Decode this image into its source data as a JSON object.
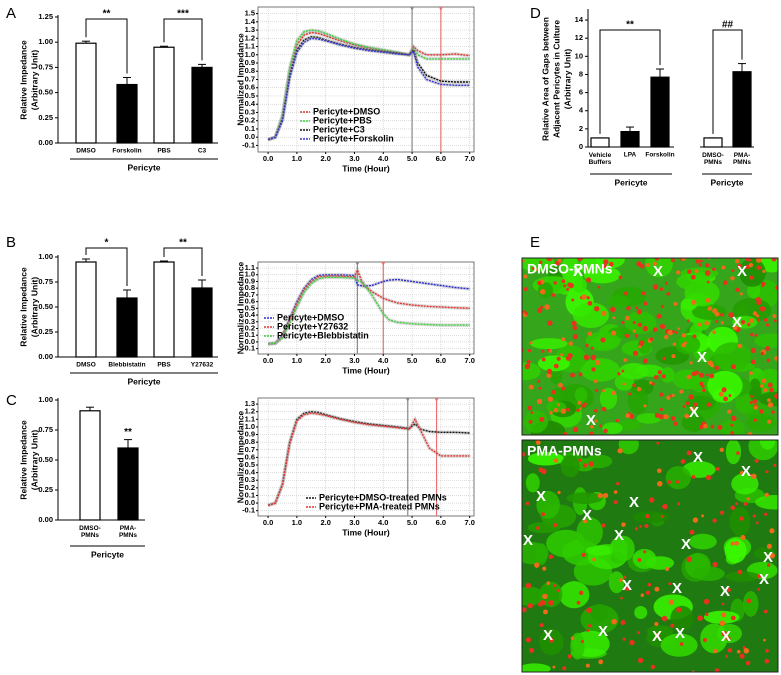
{
  "panel_labels": [
    "A",
    "B",
    "C",
    "D",
    "E"
  ],
  "chart_data": [
    {
      "type": "bar",
      "ylabel": [
        "Relative Impedance",
        "(Arbitrary Unit)"
      ],
      "xlabel": "Pericyte",
      "categories": [
        "DMSO",
        "Forskolin",
        "PBS",
        "C3"
      ],
      "values": [
        0.99,
        0.58,
        0.95,
        0.75
      ],
      "errors": [
        0.02,
        0.07,
        0.01,
        0.03
      ],
      "colors": [
        "#ffffff",
        "#000000",
        "#ffffff",
        "#000000"
      ],
      "ylim": [
        0,
        1.25
      ],
      "yticks": [
        {
          "value": 0,
          "label": "0.00"
        },
        0.25,
        {
          "value": 0.5,
          "label": "0.50"
        },
        0.75,
        {
          "value": 1,
          "label": "1.00"
        },
        1.25
      ],
      "annotations": [
        "**",
        "***"
      ]
    },
    {
      "type": "line",
      "ylabel": "Normalized Impedance",
      "xlabel": "Time (Hour)",
      "grid": true,
      "legend": "lower right",
      "x": [
        0,
        0.25,
        0.5,
        0.75,
        1,
        1.25,
        1.5,
        1.75,
        2,
        2.5,
        3,
        3.5,
        4,
        4.5,
        4.9,
        5.05,
        5.2,
        5.5,
        6,
        6.5,
        7
      ],
      "series": [
        {
          "name": "Pericyte+DMSO",
          "color": "#e8322c",
          "values": [
            -0.03,
            0.0,
            0.25,
            0.8,
            1.12,
            1.24,
            1.27,
            1.26,
            1.23,
            1.17,
            1.12,
            1.08,
            1.05,
            1.02,
            1.0,
            1.1,
            1.05,
            1.0,
            1.0,
            1.01,
            0.99
          ]
        },
        {
          "name": "Pericyte+PBS",
          "color": "#3ad13a",
          "values": [
            -0.03,
            0.0,
            0.27,
            0.84,
            1.17,
            1.28,
            1.3,
            1.29,
            1.26,
            1.19,
            1.13,
            1.09,
            1.06,
            1.03,
            1.0,
            1.08,
            1.0,
            0.95,
            0.95,
            0.95,
            0.95
          ]
        },
        {
          "name": "Pericyte+C3",
          "color": "#111111",
          "values": [
            -0.03,
            0.0,
            0.22,
            0.75,
            1.06,
            1.18,
            1.22,
            1.21,
            1.18,
            1.13,
            1.09,
            1.06,
            1.04,
            1.02,
            1.0,
            1.06,
            0.9,
            0.75,
            0.68,
            0.67,
            0.67
          ]
        },
        {
          "name": "Pericyte+Forskolin",
          "color": "#3535d6",
          "values": [
            -0.03,
            0.0,
            0.2,
            0.72,
            1.03,
            1.15,
            1.2,
            1.19,
            1.17,
            1.12,
            1.08,
            1.05,
            1.03,
            1.01,
            1.0,
            1.04,
            0.85,
            0.7,
            0.64,
            0.63,
            0.63
          ]
        }
      ],
      "vlines": [
        {
          "x": 5.0,
          "color": "#888888"
        },
        {
          "x": 6.0,
          "color": "#e87070"
        }
      ],
      "xlim": [
        -0.35,
        7.15
      ],
      "ylim": [
        -0.18,
        1.58
      ],
      "xticks": [
        {
          "value": 0,
          "label": "0.0"
        },
        {
          "value": 1,
          "label": "1.0"
        },
        {
          "value": 2,
          "label": "2.0"
        },
        {
          "value": 3,
          "label": "3.0"
        },
        {
          "value": 4,
          "label": "4.0"
        },
        {
          "value": 5,
          "label": "5.0"
        },
        {
          "value": 6,
          "label": "6.0"
        },
        {
          "value": 7,
          "label": "7.0"
        }
      ],
      "yticks": [
        -0.1,
        {
          "value": 0,
          "label": "0.0"
        },
        0.1,
        0.2,
        0.3,
        0.4,
        0.5,
        0.6,
        0.7,
        0.8,
        0.9,
        {
          "value": 1,
          "label": "1.0"
        },
        1.1,
        1.2,
        1.3,
        1.4,
        1.5
      ]
    },
    {
      "type": "bar",
      "ylabel": [
        "Relative Impedance",
        "(Arbitrary Unit)"
      ],
      "xlabel": "Pericyte",
      "categories": [
        "DMSO",
        "Blebbistatin",
        "PBS",
        "Y27632"
      ],
      "values": [
        0.95,
        0.59,
        0.95,
        0.69
      ],
      "errors": [
        0.03,
        0.08,
        0.01,
        0.08
      ],
      "colors": [
        "#ffffff",
        "#000000",
        "#ffffff",
        "#000000"
      ],
      "ylim": [
        0,
        1
      ],
      "yticks": [
        {
          "value": 0,
          "label": "0.00"
        },
        0.25,
        {
          "value": 0.5,
          "label": "0.50"
        },
        0.75,
        {
          "value": 1,
          "label": "1.00"
        }
      ],
      "annotations": [
        "*",
        "**"
      ]
    },
    {
      "type": "line",
      "ylabel": "Normalized Impedance",
      "xlabel": "Time (Hour)",
      "grid": true,
      "legend": "lower left",
      "x": [
        0,
        0.25,
        0.5,
        0.75,
        1,
        1.25,
        1.5,
        1.75,
        2,
        2.5,
        3,
        3.1,
        3.3,
        3.6,
        4,
        4.2,
        4.5,
        5,
        5.5,
        6,
        6.5,
        7
      ],
      "series": [
        {
          "name": "Pericyte+DMSO",
          "color": "#2a2ad6",
          "values": [
            -0.03,
            -0.02,
            0.1,
            0.35,
            0.6,
            0.8,
            0.93,
            0.99,
            1.0,
            1.0,
            0.99,
            0.85,
            0.83,
            0.84,
            0.9,
            0.92,
            0.93,
            0.9,
            0.87,
            0.84,
            0.81,
            0.79
          ]
        },
        {
          "name": "Pericyte+Y27632",
          "color": "#e8322c",
          "values": [
            -0.03,
            -0.02,
            0.08,
            0.32,
            0.57,
            0.78,
            0.9,
            0.97,
            0.98,
            0.98,
            0.97,
            1.07,
            0.85,
            0.75,
            0.65,
            0.62,
            0.58,
            0.55,
            0.53,
            0.52,
            0.51,
            0.5
          ]
        },
        {
          "name": "Pericyte+Blebbistatin",
          "color": "#3ad13a",
          "values": [
            -0.03,
            -0.02,
            0.06,
            0.28,
            0.52,
            0.74,
            0.87,
            0.94,
            0.96,
            0.96,
            0.95,
            0.92,
            0.88,
            0.7,
            0.42,
            0.33,
            0.29,
            0.27,
            0.26,
            0.25,
            0.25,
            0.25
          ]
        }
      ],
      "vlines": [
        {
          "x": 3.1,
          "color": "#888888"
        },
        {
          "x": 4.0,
          "color": "#e87070"
        }
      ],
      "xlim": [
        -0.35,
        7.15
      ],
      "ylim": [
        -0.18,
        1.19
      ],
      "xticks": [
        {
          "value": 0,
          "label": "0.0"
        },
        {
          "value": 1,
          "label": "1.0"
        },
        {
          "value": 2,
          "label": "2.0"
        },
        {
          "value": 3,
          "label": "3.0"
        },
        {
          "value": 4,
          "label": "4.0"
        },
        {
          "value": 5,
          "label": "5.0"
        },
        {
          "value": 6,
          "label": "6.0"
        },
        {
          "value": 7,
          "label": "7.0"
        }
      ],
      "yticks": [
        -0.1,
        {
          "value": 0,
          "label": "0.0"
        },
        0.1,
        0.2,
        0.3,
        0.4,
        0.5,
        0.6,
        0.7,
        0.8,
        0.9,
        {
          "value": 1,
          "label": "1.0"
        },
        1.1
      ]
    },
    {
      "type": "bar",
      "ylabel": [
        "Relative Impedance",
        "(Arbitrary Unit)"
      ],
      "xlabel": "Pericyte",
      "categories": [
        "DMSO-\nPMNs",
        "PMA-\nPMNs"
      ],
      "values": [
        0.91,
        0.6
      ],
      "errors": [
        0.03,
        0.07
      ],
      "colors": [
        "#ffffff",
        "#000000"
      ],
      "ylim": [
        0,
        1
      ],
      "yticks": [
        {
          "value": 0,
          "label": "0.00"
        },
        0.25,
        {
          "value": 0.5,
          "label": "0.50"
        },
        0.75,
        {
          "value": 1,
          "label": "1.00"
        }
      ],
      "annotations": [
        "**"
      ]
    },
    {
      "type": "line",
      "ylabel": "Normalized Impedance",
      "xlabel": "Time (Hour)",
      "grid": true,
      "legend": "lower right",
      "x": [
        0,
        0.25,
        0.5,
        0.75,
        1,
        1.25,
        1.5,
        1.75,
        2,
        2.5,
        3,
        3.5,
        4,
        4.5,
        4.9,
        5.1,
        5.3,
        5.6,
        6,
        6.5,
        7
      ],
      "series": [
        {
          "name": "Pericyte+DMSO-treated PMNs",
          "color": "#111111",
          "values": [
            -0.03,
            0.0,
            0.25,
            0.8,
            1.1,
            1.18,
            1.2,
            1.19,
            1.16,
            1.11,
            1.07,
            1.04,
            1.02,
            1.0,
            0.98,
            1.04,
            0.97,
            0.94,
            0.93,
            0.93,
            0.92
          ]
        },
        {
          "name": "Pericyte+PMA-treated PMNs",
          "color": "#e8322c",
          "values": [
            -0.03,
            0.0,
            0.24,
            0.78,
            1.08,
            1.16,
            1.18,
            1.17,
            1.15,
            1.1,
            1.06,
            1.03,
            1.01,
            0.99,
            0.97,
            1.1,
            0.95,
            0.72,
            0.62,
            0.62,
            0.62
          ]
        }
      ],
      "vlines": [
        {
          "x": 4.85,
          "color": "#888888"
        },
        {
          "x": 5.85,
          "color": "#e87070"
        }
      ],
      "xlim": [
        -0.35,
        7.15
      ],
      "ylim": [
        -0.17,
        1.38
      ],
      "xticks": [
        {
          "value": 0,
          "label": "0.0"
        },
        {
          "value": 1,
          "label": "1.0"
        },
        {
          "value": 2,
          "label": "2.0"
        },
        {
          "value": 3,
          "label": "3.0"
        },
        {
          "value": 4,
          "label": "4.0"
        },
        {
          "value": 5,
          "label": "5.0"
        },
        {
          "value": 6,
          "label": "6.0"
        },
        {
          "value": 7,
          "label": "7.0"
        }
      ],
      "yticks": [
        -0.1,
        {
          "value": 0,
          "label": "0.0"
        },
        0.1,
        0.2,
        0.3,
        0.4,
        0.5,
        0.6,
        0.7,
        0.8,
        0.9,
        {
          "value": 1,
          "label": "1.0"
        },
        1.1,
        1.2,
        1.3
      ]
    },
    {
      "type": "bar",
      "ylabel": [
        "Relative Area of Gaps  between",
        "Adjacent Pericytes in Culture",
        "(Arbitrary Unit)"
      ],
      "xlabel": [
        "Pericyte",
        "Pericyte"
      ],
      "categories": [
        "Vehicle\nBuffers",
        "LPA",
        "Forskolin",
        "DMSO-\nPMNs",
        "PMA-\nPMNs"
      ],
      "values": [
        1.0,
        1.7,
        7.7,
        1.0,
        8.3
      ],
      "errors": [
        0,
        0.5,
        0.9,
        0,
        0.9
      ],
      "colors": [
        "#ffffff",
        "#000000",
        "#000000",
        "#ffffff",
        "#000000"
      ],
      "ylim": [
        0,
        15
      ],
      "yticks": [
        0,
        2,
        4,
        6,
        8,
        10,
        12,
        14
      ],
      "annotations": [
        "**",
        "##"
      ]
    }
  ],
  "images": [
    {
      "label": "DMSO-PMNs",
      "markers": [
        "X",
        "X",
        "X",
        "X",
        "X",
        "X",
        "X"
      ]
    },
    {
      "label": "PMA-PMNs",
      "markers": [
        "X",
        "X",
        "X",
        "X",
        "X",
        "X",
        "X",
        "X",
        "X",
        "X",
        "X",
        "X",
        "X",
        "X",
        "X",
        "X",
        "X",
        "X"
      ]
    }
  ]
}
